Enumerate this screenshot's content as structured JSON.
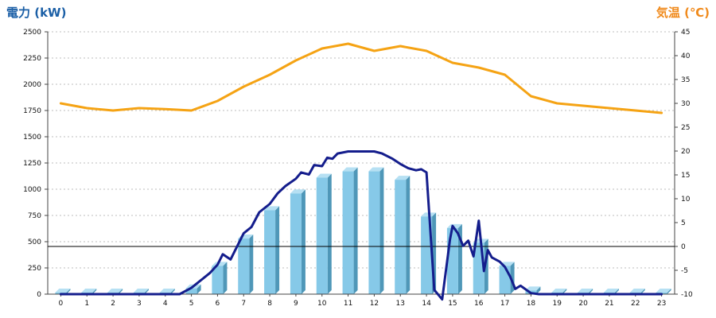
{
  "chart_data": {
    "type": "bar",
    "title_left": "電力 (kW)",
    "title_right": "気温 (℃)",
    "colors": {
      "bars": "#86c9e8",
      "bars_side": "#4f97b8",
      "bars_top": "#b6e0f3",
      "power_line": "#141d8c",
      "temperature_line": "#f5a314",
      "left_title": "#1b5fa6",
      "right_title": "#f08a1c",
      "grid": "#bdbdbd",
      "zero_line": "#000000"
    },
    "x_categories": [
      "0",
      "1",
      "2",
      "3",
      "4",
      "5",
      "6",
      "7",
      "8",
      "9",
      "10",
      "11",
      "12",
      "13",
      "14",
      "15",
      "16",
      "17",
      "18",
      "19",
      "20",
      "21",
      "22",
      "23"
    ],
    "y_left": {
      "min": 0,
      "max": 2500,
      "ticks": [
        "0",
        "250",
        "500",
        "750",
        "1000",
        "1250",
        "1500",
        "1750",
        "2000",
        "2250",
        "2500"
      ]
    },
    "y_right": {
      "min": -10,
      "max": 45,
      "ticks": [
        "-10",
        "-5",
        "0",
        "5",
        "10",
        "15",
        "20",
        "25",
        "30",
        "35",
        "40",
        "45"
      ]
    },
    "grid": true,
    "series": [
      {
        "kind": "bar",
        "axis": "left",
        "values": [
          15,
          15,
          15,
          15,
          15,
          55,
          270,
          530,
          800,
          960,
          1110,
          1170,
          1170,
          1090,
          740,
          630,
          490,
          270,
          35,
          15,
          15,
          15,
          15,
          15
        ]
      },
      {
        "kind": "line",
        "axis": "left",
        "x": [
          0,
          1,
          2,
          3,
          4,
          4.55,
          5,
          5.3,
          5.7,
          6,
          6.2,
          6.5,
          6.7,
          7,
          7.3,
          7.6,
          8,
          8.3,
          8.6,
          9,
          9.2,
          9.5,
          9.7,
          10,
          10.2,
          10.4,
          10.6,
          11,
          11.5,
          12,
          12.3,
          12.7,
          13,
          13.3,
          13.6,
          13.8,
          14,
          14.3,
          14.6,
          14.9,
          15,
          15.2,
          15.4,
          15.6,
          15.8,
          16,
          16.2,
          16.35,
          16.5,
          16.8,
          17,
          17.2,
          17.4,
          17.6,
          18,
          18.3,
          19,
          20,
          21,
          22,
          23
        ],
        "y": [
          0,
          0,
          0,
          0,
          0,
          0,
          60,
          120,
          200,
          280,
          380,
          330,
          430,
          580,
          640,
          780,
          860,
          960,
          1030,
          1100,
          1160,
          1140,
          1230,
          1220,
          1300,
          1290,
          1340,
          1360,
          1360,
          1360,
          1340,
          1290,
          1240,
          1200,
          1180,
          1190,
          1160,
          40,
          -50,
          520,
          650,
          580,
          460,
          510,
          360,
          700,
          220,
          420,
          350,
          310,
          260,
          170,
          50,
          80,
          10,
          0,
          0,
          0,
          0,
          0,
          0
        ]
      },
      {
        "kind": "line",
        "axis": "right",
        "x": [
          0,
          1,
          2,
          3,
          4,
          5,
          6,
          7,
          8,
          9,
          10,
          11,
          12,
          13,
          14,
          15,
          16,
          17,
          18,
          19,
          20,
          21,
          22,
          23
        ],
        "y": [
          30,
          29,
          28.5,
          29,
          28.8,
          28.5,
          30.5,
          33.5,
          36,
          39,
          41.5,
          42.5,
          41,
          42,
          41,
          38.5,
          37.5,
          36,
          31.5,
          30,
          29.5,
          29,
          28.5,
          28
        ]
      }
    ]
  }
}
